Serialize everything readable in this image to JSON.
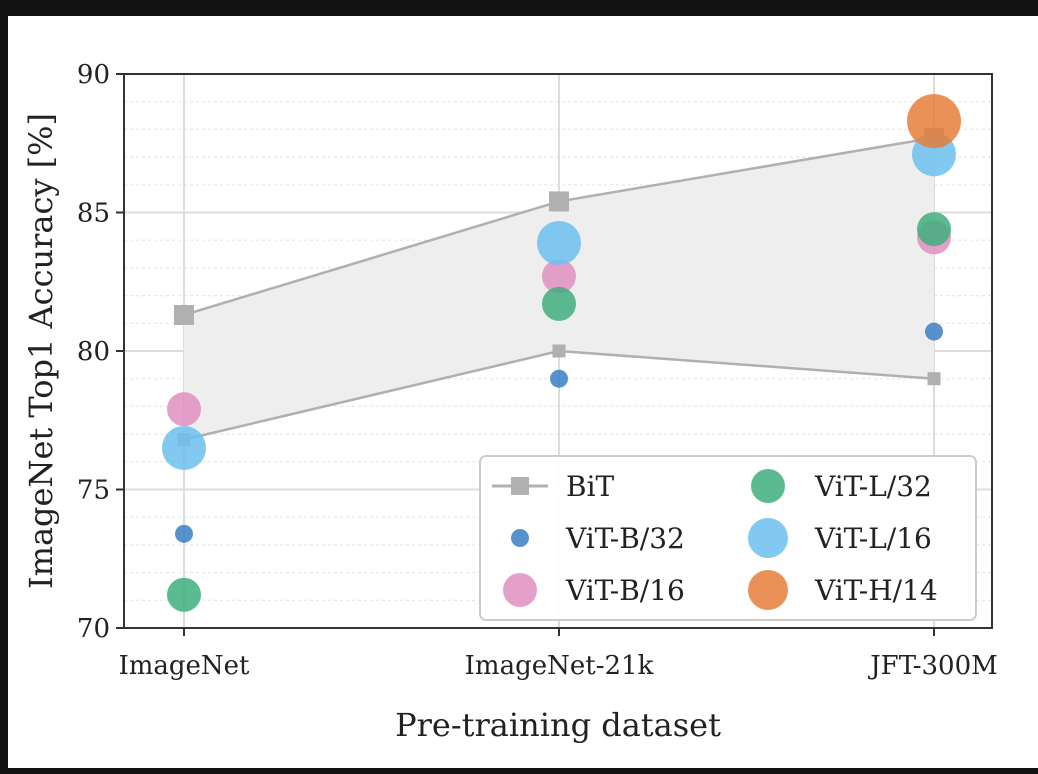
{
  "chart_data": {
    "type": "scatter",
    "xlabel": "Pre-training dataset",
    "ylabel": "ImageNet Top1 Accuracy [%]",
    "categories": [
      "ImageNet",
      "ImageNet-21k",
      "JFT-300M"
    ],
    "ylim": [
      70,
      90
    ],
    "yticks": [
      70,
      75,
      80,
      85,
      90
    ],
    "grid": true,
    "legend_position": "bottom-right",
    "band": {
      "name": "BiT",
      "upper": [
        81.3,
        85.4,
        87.7
      ],
      "lower": [
        76.8,
        80.0,
        79.0
      ],
      "color": "#b0b0b0",
      "fill": "#eeeeee"
    },
    "series": [
      {
        "name": "ViT-B/32",
        "color": "#3b7fc4",
        "size": "small",
        "values": [
          73.4,
          79.0,
          80.7
        ]
      },
      {
        "name": "ViT-B/16",
        "color": "#e08fc0",
        "size": "medium",
        "values": [
          77.9,
          82.7,
          84.1
        ]
      },
      {
        "name": "ViT-L/32",
        "color": "#3fae7c",
        "size": "medium",
        "values": [
          71.2,
          81.7,
          84.4
        ]
      },
      {
        "name": "ViT-L/16",
        "color": "#6cc0f0",
        "size": "large",
        "values": [
          76.5,
          83.9,
          87.1
        ]
      },
      {
        "name": "ViT-H/14",
        "color": "#e67e3a",
        "size": "xlarge",
        "values": [
          null,
          null,
          88.3
        ]
      }
    ]
  }
}
